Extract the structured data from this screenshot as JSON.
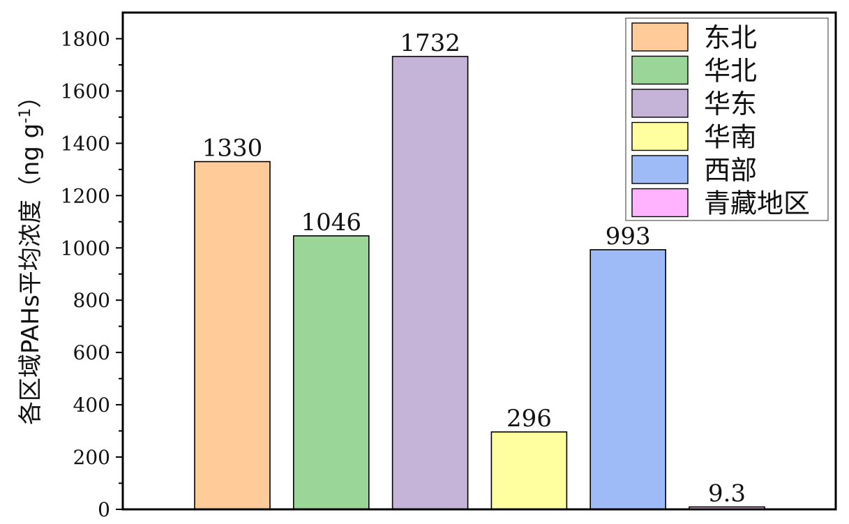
{
  "chart_data": {
    "type": "bar",
    "categories": [
      "东北",
      "华北",
      "华东",
      "华南",
      "西部",
      "青藏地区"
    ],
    "values": [
      1330,
      1046,
      1732,
      296,
      993,
      9.3
    ],
    "value_labels": [
      "1330",
      "1046",
      "1732",
      "296",
      "993",
      "9.3"
    ],
    "colors": [
      "#FFCC99",
      "#9BD699",
      "#C5B3D8",
      "#FFFFA0",
      "#9EBBF7",
      "#FFB3FF"
    ],
    "title": "",
    "xlabel": "",
    "ylabel_main": "各区域PAHs平均浓度（ng g",
    "ylabel_sup": "-1",
    "ylabel_close": "）",
    "ylim": [
      0,
      1900
    ],
    "yticks": [
      0,
      200,
      400,
      600,
      800,
      1000,
      1200,
      1400,
      1600,
      1800
    ],
    "ytick_labels": [
      "0",
      "200",
      "400",
      "600",
      "800",
      "1000",
      "1200",
      "1400",
      "1600",
      "1800"
    ],
    "grid": false,
    "legend_position": "top-right",
    "legend": [
      "东北",
      "华北",
      "华东",
      "华南",
      "西部",
      "青藏地区"
    ]
  }
}
